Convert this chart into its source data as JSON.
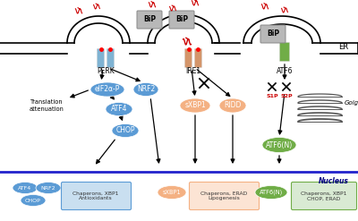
{
  "bg_color": "#ffffff",
  "nucleus_line_color": "#2222cc",
  "nucleus_label": "Nucleus",
  "er_label": "ER",
  "golgi_label": "Golgi",
  "perk_label": "PERK",
  "ire1_label": "IRE1",
  "atf6_label": "ATF6",
  "eif2a_label": "eIF2α-P",
  "nrf2_label": "NRF2",
  "atf4_label": "ATF4",
  "chop_label": "CHOP",
  "sxbp1_label": "sXBP1",
  "ridd_label": "RIDD",
  "atf6n_label": "ATF6(N)",
  "translation_label": "Translation\nattenuation",
  "bip_color": "#b8b8b8",
  "bip_label": "BiP",
  "perk_receptor_color": "#7fb3d3",
  "ire1_receptor_color": "#d4956a",
  "atf6_receptor_color": "#70ad47",
  "eif2a_oval_color": "#5b9bd5",
  "nrf2_oval_color": "#5b9bd5",
  "atf4_oval_color": "#5b9bd5",
  "chop_oval_color": "#5b9bd5",
  "sxbp1_oval_color": "#f4b183",
  "ridd_oval_color": "#f4b183",
  "atf6n_oval_color": "#70ad47",
  "alpha_syn_color": "#cc0000",
  "s1p_label": "S1P",
  "s2p_label": "S2P",
  "nucleus_chaperons_1_label": "Chaperons, XBP1\nAntioxidants",
  "nucleus_sxbp1_label": "sXBP1",
  "nucleus_chaperons_2_label": "Chaperons, ERAD\nLipogenesis",
  "nucleus_atf6n_label": "ATF6(N)",
  "nucleus_chaperons_3_label": "Chaperons, XBP1\nCHOP, ERAD",
  "chap1_bg": "#c9dff0",
  "chap1_edge": "#5b9bd5",
  "chap2_bg": "#fce4d4",
  "chap2_edge": "#f4b183",
  "chap3_bg": "#d9ead3",
  "chap3_edge": "#70ad47"
}
